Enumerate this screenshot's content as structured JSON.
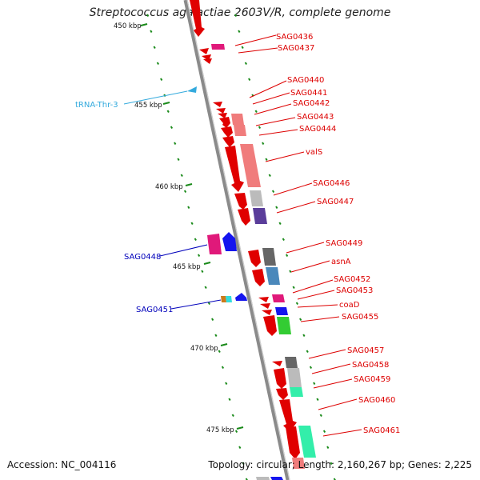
{
  "title": "Streptococcus agalactiae 2603V/R, complete genome",
  "footer": {
    "accession": "Accession: NC_004116",
    "summary": "Topology: circular; Length: 2,160,267 bp; Genes: 2,225"
  },
  "scale_labels": [
    "450 kbp",
    "455 kbp",
    "460 kbp",
    "465 kbp",
    "470 kbp",
    "475 kbp"
  ],
  "colors": {
    "backbone": "#8a8a8a",
    "forward_label": "#dd0000",
    "reverse_label": "#0000bb",
    "rna_label": "#33aadd",
    "tick": "#1a8a1a"
  },
  "right_labels": [
    "SAG0436",
    "SAG0437",
    "SAG0440",
    "SAG0441",
    "SAG0442",
    "SAG0443",
    "SAG0444",
    "valS",
    "SAG0446",
    "SAG0447",
    "SAG0449",
    "asnA",
    "SAG0452",
    "SAG0453",
    "coaD",
    "SAG0455",
    "SAG0457",
    "SAG0458",
    "SAG0459",
    "SAG0460",
    "SAG0461"
  ],
  "left_labels": [
    "tRNA-Thr-3",
    "SAG0448",
    "SAG0451"
  ]
}
